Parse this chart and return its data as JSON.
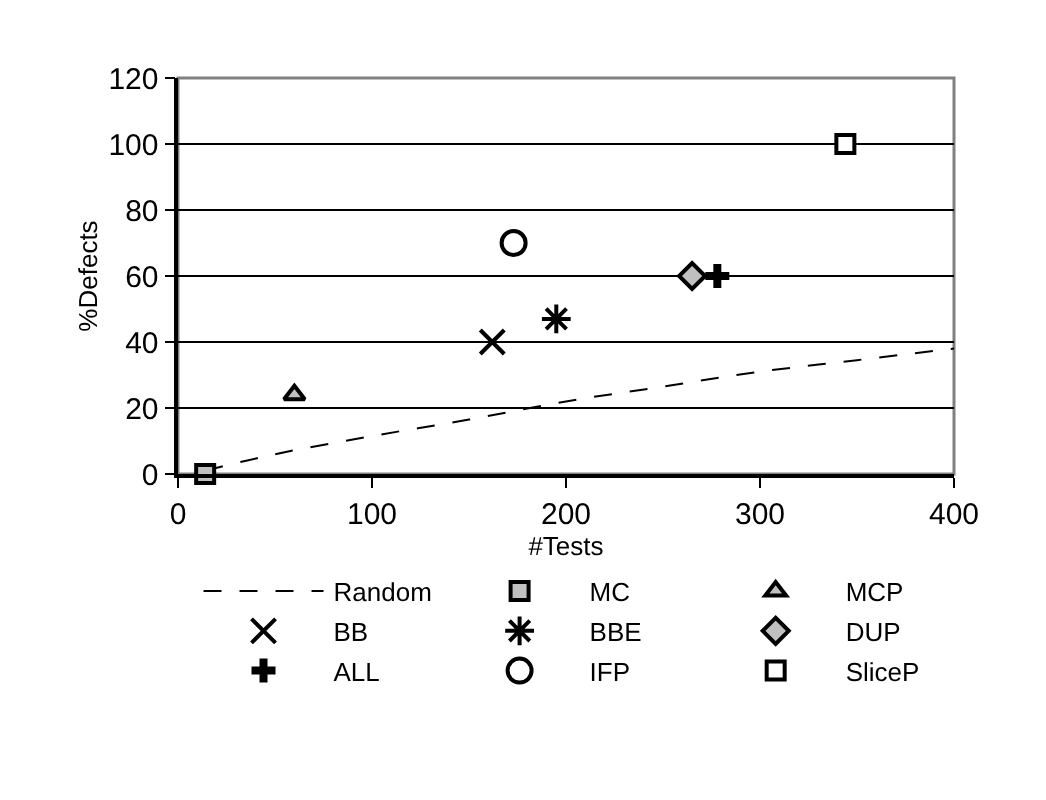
{
  "chart_data": {
    "type": "scatter",
    "xlabel": "#Tests",
    "ylabel": "%Defects",
    "xlim": [
      0,
      400
    ],
    "xticks": [
      0,
      100,
      200,
      300,
      400
    ],
    "ylim": [
      0,
      120
    ],
    "yticks": [
      0,
      20,
      40,
      60,
      80,
      100,
      120
    ],
    "grid": "y",
    "legend": "bottom",
    "series": [
      {
        "name": "Random",
        "type": "line",
        "line_style": "dashed",
        "color": "#000000",
        "x": [
          14,
          50,
          100,
          150,
          200,
          250,
          300,
          350,
          400
        ],
        "values": [
          1,
          6,
          11.5,
          16.5,
          22,
          26.5,
          31,
          34.5,
          38
        ]
      },
      {
        "name": "MC",
        "marker": "square",
        "color": "#c0c0c0",
        "x": [
          14
        ],
        "values": [
          0
        ]
      },
      {
        "name": "MCP",
        "marker": "triangle",
        "color": "#c0c0c0",
        "x": [
          60
        ],
        "values": [
          24
        ]
      },
      {
        "name": "BB",
        "marker": "x",
        "color": "#000000",
        "x": [
          162
        ],
        "values": [
          40
        ]
      },
      {
        "name": "BBE",
        "marker": "cross",
        "color": "#000000",
        "x": [
          195
        ],
        "values": [
          47
        ]
      },
      {
        "name": "DUP",
        "marker": "diamond",
        "color": "#c0c0c0",
        "x": [
          265
        ],
        "values": [
          60
        ]
      },
      {
        "name": "ALL",
        "marker": "plus",
        "color": "#000000",
        "x": [
          278
        ],
        "values": [
          60
        ]
      },
      {
        "name": "IFP",
        "marker": "circle",
        "color": "#ffffff",
        "x": [
          173
        ],
        "values": [
          70
        ]
      },
      {
        "name": "SliceP",
        "marker": "square",
        "color": "#ffffff",
        "x": [
          344
        ],
        "values": [
          100
        ]
      }
    ]
  }
}
